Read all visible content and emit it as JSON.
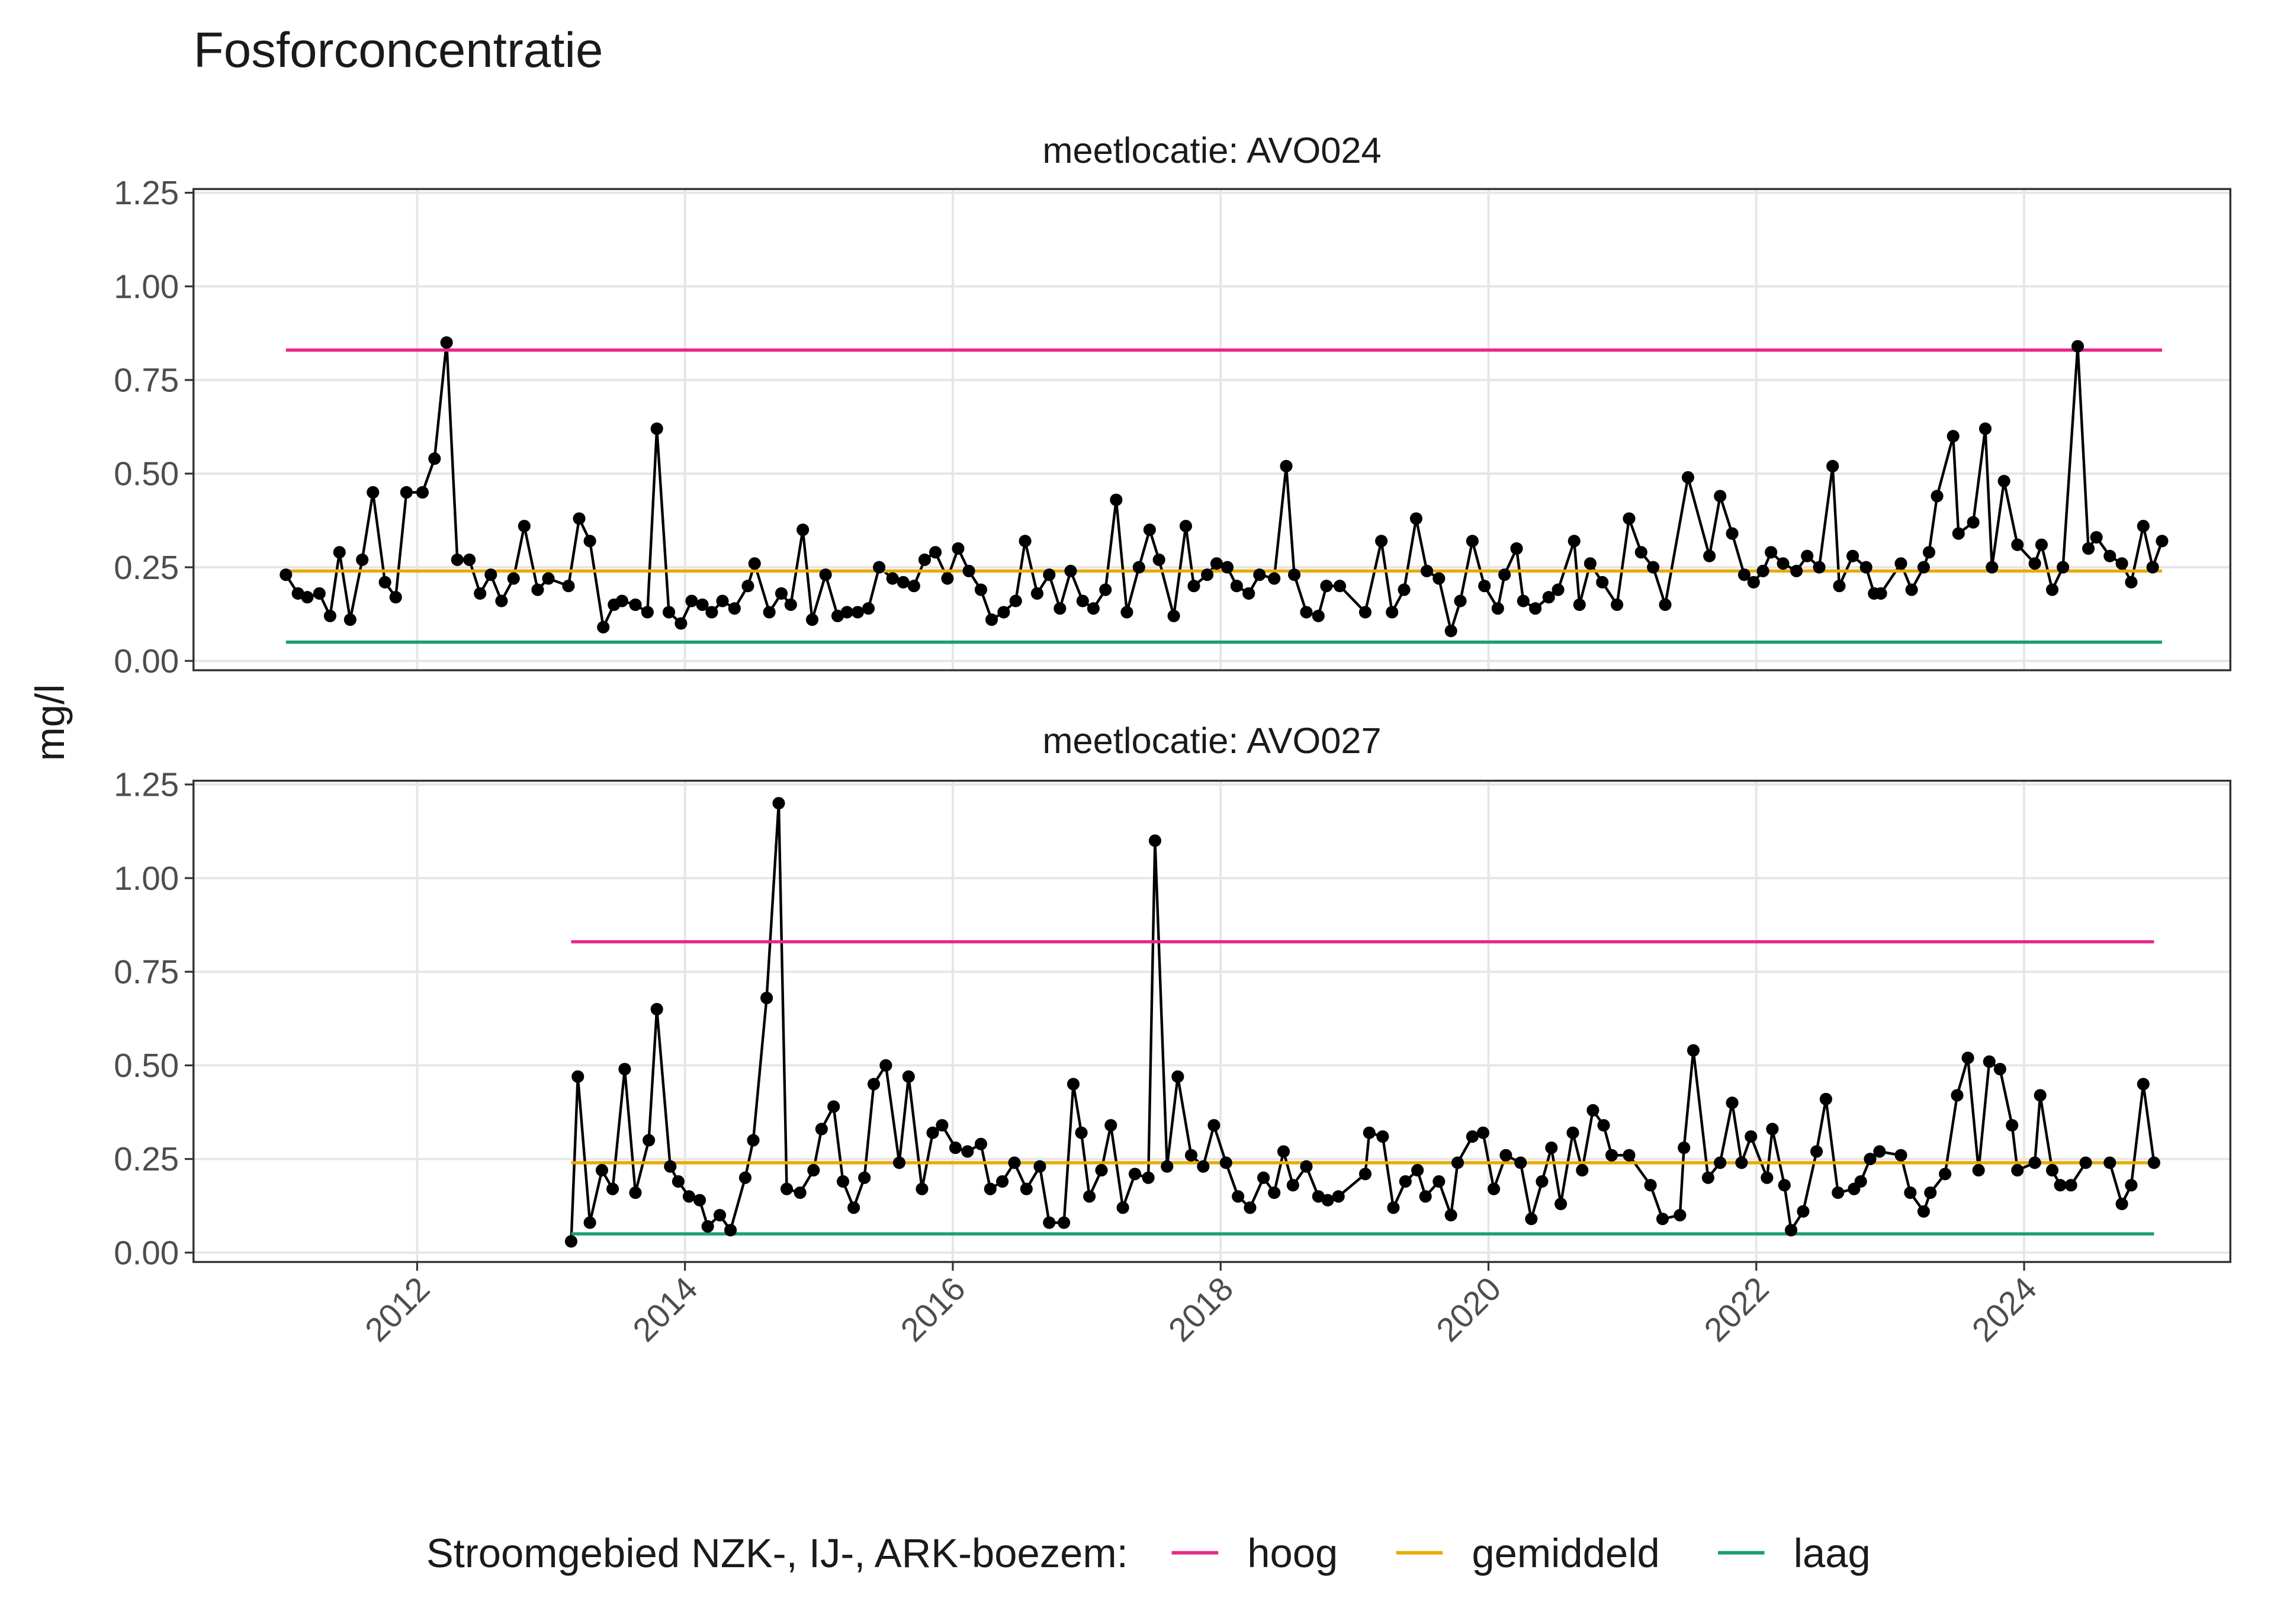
{
  "chart_data": {
    "type": "line",
    "title": "Fosforconcentratie",
    "ylabel": "mg/l",
    "xlim": [
      2010.33,
      2025.54
    ],
    "xticks": [
      2012,
      2014,
      2016,
      2018,
      2020,
      2022,
      2024
    ],
    "ylim": [
      -0.025,
      1.26
    ],
    "yticks": [
      {
        "value": 0,
        "label": "0.00"
      },
      {
        "value": 0.25,
        "label": "0.25"
      },
      {
        "value": 0.5,
        "label": "0.50"
      },
      {
        "value": 0.75,
        "label": "0.75"
      },
      {
        "value": 1,
        "label": "1.00"
      },
      {
        "value": 1.25,
        "label": "1.25"
      }
    ],
    "grid": true,
    "color": "#000000",
    "legend_title": "Stroomgebied NZK-, IJ-, ARK-boezem:",
    "legend_position": "bottom",
    "reference": [
      {
        "name": "hoog",
        "color": "#e7298a",
        "value": 0.83
      },
      {
        "name": "gemiddeld",
        "color": "#e6ab02",
        "value": 0.24
      },
      {
        "name": "laag",
        "color": "#1b9e77",
        "value": 0.05
      }
    ],
    "panels": [
      {
        "title": "meetlocatie: AVO024",
        "ref_x": [
          2011.02,
          2025.03
        ],
        "x": [
          2011.02,
          2011.11,
          2011.18,
          2011.27,
          2011.35,
          2011.42,
          2011.5,
          2011.59,
          2011.67,
          2011.76,
          2011.84,
          2011.92,
          2012.04,
          2012.13,
          2012.22,
          2012.3,
          2012.39,
          2012.47,
          2012.55,
          2012.63,
          2012.72,
          2012.8,
          2012.9,
          2012.98,
          2013.13,
          2013.21,
          2013.29,
          2013.39,
          2013.47,
          2013.53,
          2013.63,
          2013.72,
          2013.79,
          2013.88,
          2013.97,
          2014.05,
          2014.13,
          2014.2,
          2014.28,
          2014.37,
          2014.47,
          2014.52,
          2014.63,
          2014.72,
          2014.79,
          2014.88,
          2014.95,
          2015.05,
          2015.14,
          2015.21,
          2015.29,
          2015.37,
          2015.45,
          2015.55,
          2015.63,
          2015.71,
          2015.79,
          2015.87,
          2015.96,
          2016.04,
          2016.12,
          2016.21,
          2016.29,
          2016.38,
          2016.47,
          2016.54,
          2016.63,
          2016.72,
          2016.8,
          2016.88,
          2016.97,
          2017.05,
          2017.14,
          2017.22,
          2017.3,
          2017.39,
          2017.47,
          2017.54,
          2017.65,
          2017.74,
          2017.8,
          2017.9,
          2017.97,
          2018.05,
          2018.12,
          2018.21,
          2018.29,
          2018.4,
          2018.49,
          2018.55,
          2018.64,
          2018.73,
          2018.79,
          2018.89,
          2019.08,
          2019.2,
          2019.28,
          2019.37,
          2019.46,
          2019.54,
          2019.63,
          2019.72,
          2019.79,
          2019.88,
          2019.97,
          2020.07,
          2020.12,
          2020.21,
          2020.26,
          2020.35,
          2020.45,
          2020.52,
          2020.64,
          2020.68,
          2020.76,
          2020.85,
          2020.96,
          2021.05,
          2021.14,
          2021.23,
          2021.32,
          2021.49,
          2021.65,
          2021.73,
          2021.82,
          2021.91,
          2021.98,
          2022.05,
          2022.11,
          2022.2,
          2022.3,
          2022.38,
          2022.47,
          2022.57,
          2022.62,
          2022.72,
          2022.82,
          2022.88,
          2022.93,
          2023.08,
          2023.16,
          2023.25,
          2023.29,
          2023.35,
          2023.47,
          2023.51,
          2023.62,
          2023.71,
          2023.76,
          2023.85,
          2023.95,
          2024.08,
          2024.13,
          2024.21,
          2024.29,
          2024.4,
          2024.48,
          2024.54,
          2024.64,
          2024.73,
          2024.8,
          2024.89,
          2024.96,
          2025.03
        ],
        "values": [
          0.23,
          0.18,
          0.17,
          0.18,
          0.12,
          0.29,
          0.11,
          0.27,
          0.45,
          0.21,
          0.17,
          0.45,
          0.45,
          0.54,
          0.85,
          0.27,
          0.27,
          0.18,
          0.23,
          0.16,
          0.22,
          0.36,
          0.19,
          0.22,
          0.2,
          0.38,
          0.32,
          0.09,
          0.15,
          0.16,
          0.15,
          0.13,
          0.62,
          0.13,
          0.1,
          0.16,
          0.15,
          0.13,
          0.16,
          0.14,
          0.2,
          0.26,
          0.13,
          0.18,
          0.15,
          0.35,
          0.11,
          0.23,
          0.12,
          0.13,
          0.13,
          0.14,
          0.25,
          0.22,
          0.21,
          0.2,
          0.27,
          0.29,
          0.22,
          0.3,
          0.24,
          0.19,
          0.11,
          0.13,
          0.16,
          0.32,
          0.18,
          0.23,
          0.14,
          0.24,
          0.16,
          0.14,
          0.19,
          0.43,
          0.13,
          0.25,
          0.35,
          0.27,
          0.12,
          0.36,
          0.2,
          0.23,
          0.26,
          0.25,
          0.2,
          0.18,
          0.23,
          0.22,
          0.52,
          0.23,
          0.13,
          0.12,
          0.2,
          0.2,
          0.13,
          0.32,
          0.13,
          0.19,
          0.38,
          0.24,
          0.22,
          0.08,
          0.16,
          0.32,
          0.2,
          0.14,
          0.23,
          0.3,
          0.16,
          0.14,
          0.17,
          0.19,
          0.32,
          0.15,
          0.26,
          0.21,
          0.15,
          0.38,
          0.29,
          0.25,
          0.15,
          0.49,
          0.28,
          0.44,
          0.34,
          0.23,
          0.21,
          0.24,
          0.29,
          0.26,
          0.24,
          0.28,
          0.25,
          0.52,
          0.2,
          0.28,
          0.25,
          0.18,
          0.18,
          0.26,
          0.19,
          0.25,
          0.29,
          0.44,
          0.6,
          0.34,
          0.37,
          0.62,
          0.25,
          0.48,
          0.31,
          0.26,
          0.31,
          0.19,
          0.25,
          0.84,
          0.3,
          0.33,
          0.28,
          0.26,
          0.21,
          0.36,
          0.25,
          0.32
        ]
      },
      {
        "title": "meetlocatie: AVO027",
        "ref_x": [
          2013.15,
          2024.97
        ],
        "x": [
          2013.15,
          2013.2,
          2013.29,
          2013.38,
          2013.46,
          2013.55,
          2013.63,
          2013.73,
          2013.79,
          2013.89,
          2013.95,
          2014.03,
          2014.11,
          2014.17,
          2014.26,
          2014.34,
          2014.45,
          2014.51,
          2014.61,
          2014.7,
          2014.76,
          2014.86,
          2014.96,
          2015.02,
          2015.11,
          2015.18,
          2015.26,
          2015.34,
          2015.41,
          2015.5,
          2015.6,
          2015.67,
          2015.77,
          2015.85,
          2015.92,
          2016.02,
          2016.11,
          2016.21,
          2016.28,
          2016.37,
          2016.46,
          2016.55,
          2016.65,
          2016.72,
          2016.83,
          2016.9,
          2016.96,
          2017.02,
          2017.11,
          2017.18,
          2017.27,
          2017.36,
          2017.46,
          2017.51,
          2017.6,
          2017.68,
          2017.78,
          2017.87,
          2017.95,
          2018.04,
          2018.13,
          2018.22,
          2018.32,
          2018.4,
          2018.47,
          2018.54,
          2018.64,
          2018.73,
          2018.8,
          2018.88,
          2019.08,
          2019.11,
          2019.21,
          2019.29,
          2019.38,
          2019.47,
          2019.53,
          2019.63,
          2019.72,
          2019.77,
          2019.88,
          2019.96,
          2020.04,
          2020.13,
          2020.24,
          2020.32,
          2020.4,
          2020.47,
          2020.54,
          2020.63,
          2020.7,
          2020.78,
          2020.86,
          2020.92,
          2021.05,
          2021.21,
          2021.3,
          2021.43,
          2021.46,
          2021.53,
          2021.64,
          2021.73,
          2021.82,
          2021.89,
          2021.96,
          2022.08,
          2022.12,
          2022.21,
          2022.26,
          2022.35,
          2022.45,
          2022.52,
          2022.61,
          2022.73,
          2022.78,
          2022.85,
          2022.92,
          2023.08,
          2023.15,
          2023.25,
          2023.3,
          2023.41,
          2023.5,
          2023.58,
          2023.66,
          2023.74,
          2023.82,
          2023.91,
          2023.95,
          2024.08,
          2024.12,
          2024.21,
          2024.27,
          2024.35,
          2024.46,
          2024.64,
          2024.73,
          2024.8,
          2024.89,
          2024.97
        ],
        "values": [
          0.03,
          0.47,
          0.08,
          0.22,
          0.17,
          0.49,
          0.16,
          0.3,
          0.65,
          0.23,
          0.19,
          0.15,
          0.14,
          0.07,
          0.1,
          0.06,
          0.2,
          0.3,
          0.68,
          1.2,
          0.17,
          0.16,
          0.22,
          0.33,
          0.39,
          0.19,
          0.12,
          0.2,
          0.45,
          0.5,
          0.24,
          0.47,
          0.17,
          0.32,
          0.34,
          0.28,
          0.27,
          0.29,
          0.17,
          0.19,
          0.24,
          0.17,
          0.23,
          0.08,
          0.08,
          0.45,
          0.32,
          0.15,
          0.22,
          0.34,
          0.12,
          0.21,
          0.2,
          1.1,
          0.23,
          0.47,
          0.26,
          0.23,
          0.34,
          0.24,
          0.15,
          0.12,
          0.2,
          0.16,
          0.27,
          0.18,
          0.23,
          0.15,
          0.14,
          0.15,
          0.21,
          0.32,
          0.31,
          0.12,
          0.19,
          0.22,
          0.15,
          0.19,
          0.1,
          0.24,
          0.31,
          0.32,
          0.17,
          0.26,
          0.24,
          0.09,
          0.19,
          0.28,
          0.13,
          0.32,
          0.22,
          0.38,
          0.34,
          0.26,
          0.26,
          0.18,
          0.09,
          0.1,
          0.28,
          0.54,
          0.2,
          0.24,
          0.4,
          0.24,
          0.31,
          0.2,
          0.33,
          0.18,
          0.06,
          0.11,
          0.27,
          0.41,
          0.16,
          0.17,
          0.19,
          0.25,
          0.27,
          0.26,
          0.16,
          0.11,
          0.16,
          0.21,
          0.42,
          0.52,
          0.22,
          0.51,
          0.49,
          0.34,
          0.22,
          0.24,
          0.42,
          0.22,
          0.18,
          0.18,
          0.24,
          0.24,
          0.13,
          0.18,
          0.45,
          0.24
        ]
      }
    ]
  }
}
